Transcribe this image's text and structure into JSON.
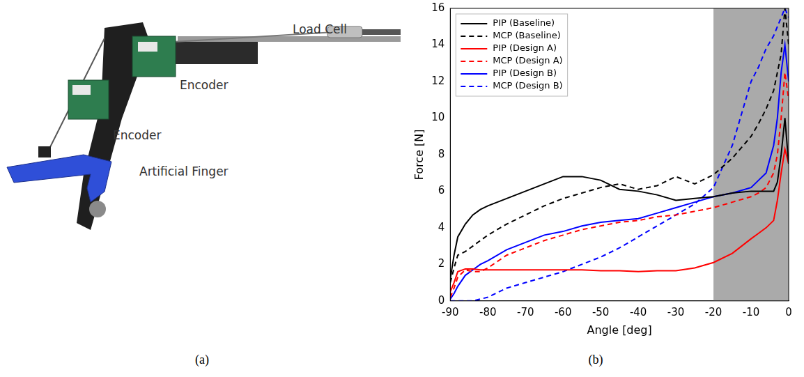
{
  "figure": {
    "captions": [
      "(a)",
      "(b)"
    ]
  },
  "photo": {
    "labels": [
      "Load Cell",
      "Encoder",
      "Encoder",
      "Artificial Finger"
    ]
  },
  "chart_data": {
    "type": "line",
    "x_label": "Angle [deg]",
    "y_label": "Force [N]",
    "xlim": [
      -90,
      0
    ],
    "xticks": [
      -90,
      -80,
      -70,
      -60,
      -50,
      -40,
      -30,
      -20,
      -10,
      0
    ],
    "ylim": [
      0,
      16
    ],
    "yticks": [
      0,
      2,
      4,
      6,
      8,
      10,
      12,
      14,
      16
    ],
    "grid": false,
    "legend": "upper left",
    "shaded_xrange": [
      -20,
      0
    ],
    "x": [
      -90,
      -89,
      -88,
      -86,
      -84,
      -82,
      -80,
      -75,
      -70,
      -65,
      -60,
      -55,
      -50,
      -45,
      -40,
      -35,
      -30,
      -25,
      -20,
      -15,
      -10,
      -8,
      -6,
      -4,
      -3,
      -2,
      -1,
      0
    ],
    "series": [
      {
        "name": "PIP (Baseline)",
        "color": "#000000",
        "line_style": "solid",
        "values": [
          1.2,
          2.5,
          3.5,
          4.2,
          4.7,
          5.0,
          5.2,
          5.6,
          6.0,
          6.4,
          6.8,
          6.8,
          6.6,
          6.1,
          6.0,
          5.8,
          5.5,
          5.6,
          5.7,
          5.9,
          6.0,
          6.0,
          6.0,
          6.0,
          6.5,
          8.0,
          10.0,
          7.5
        ]
      },
      {
        "name": "MCP (Baseline)",
        "color": "#000000",
        "line_style": "dashed",
        "values": [
          1.0,
          1.8,
          2.5,
          2.7,
          3.0,
          3.3,
          3.6,
          4.2,
          4.7,
          5.2,
          5.6,
          5.9,
          6.2,
          6.4,
          6.1,
          6.3,
          6.8,
          6.4,
          6.9,
          7.8,
          9.0,
          9.7,
          10.5,
          11.5,
          12.5,
          13.5,
          16.0,
          14.0
        ]
      },
      {
        "name": "PIP (Design A)",
        "color": "#ff0000",
        "line_style": "solid",
        "values": [
          0.5,
          1.0,
          1.6,
          1.75,
          1.75,
          1.7,
          1.7,
          1.7,
          1.7,
          1.7,
          1.7,
          1.7,
          1.65,
          1.65,
          1.6,
          1.65,
          1.65,
          1.8,
          2.1,
          2.6,
          3.4,
          3.7,
          4.0,
          4.4,
          5.5,
          7.0,
          8.3,
          7.5
        ]
      },
      {
        "name": "MCP (Design A)",
        "color": "#ff0000",
        "line_style": "dashed",
        "values": [
          0.2,
          0.7,
          1.3,
          1.7,
          1.6,
          1.6,
          1.8,
          2.5,
          2.9,
          3.3,
          3.6,
          3.9,
          4.1,
          4.3,
          4.4,
          4.6,
          4.7,
          4.9,
          5.1,
          5.4,
          5.7,
          5.9,
          6.2,
          7.0,
          8.0,
          10.0,
          12.5,
          11.0
        ]
      },
      {
        "name": "PIP (Design B)",
        "color": "#0000ff",
        "line_style": "solid",
        "values": [
          0.1,
          0.4,
          0.8,
          1.4,
          1.7,
          2.0,
          2.2,
          2.8,
          3.2,
          3.6,
          3.8,
          4.1,
          4.3,
          4.4,
          4.5,
          4.8,
          5.1,
          5.4,
          5.7,
          5.9,
          6.2,
          6.6,
          7.0,
          8.5,
          10.0,
          12.5,
          14.0,
          12.0
        ]
      },
      {
        "name": "MCP (Design B)",
        "color": "#0000ff",
        "line_style": "dashed",
        "values": [
          0.0,
          0.0,
          0.0,
          0.0,
          0.0,
          0.1,
          0.2,
          0.7,
          1.0,
          1.3,
          1.6,
          2.0,
          2.4,
          2.9,
          3.5,
          4.1,
          4.7,
          5.3,
          6.2,
          8.5,
          12.0,
          12.8,
          13.8,
          14.5,
          15.0,
          15.5,
          16.0,
          15.5
        ]
      }
    ]
  }
}
